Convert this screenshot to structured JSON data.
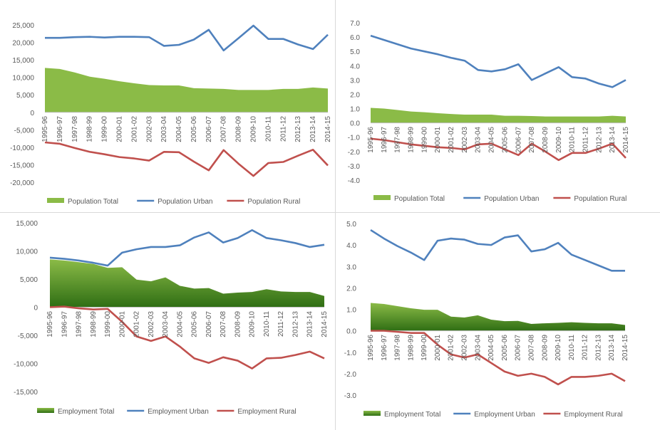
{
  "colors": {
    "total": "#8bbb47",
    "total_dark": "#2f6e14",
    "urban": "#4f81bd",
    "rural": "#c0504d",
    "axis": "#595959",
    "zero": "#bfbfbf"
  },
  "categories": [
    "1995-96",
    "1996-97",
    "1997-98",
    "1998-99",
    "1999-00",
    "2000-01",
    "2001-02",
    "2002-03",
    "2003-04",
    "2004-05",
    "2005-06",
    "2006-07",
    "2007-08",
    "2008-09",
    "2009-10",
    "2010-11",
    "2011-12",
    "2012-13",
    "2013-14",
    "2014-15"
  ],
  "chart_data": [
    {
      "type": "line",
      "ylim": [
        -20000,
        25000
      ],
      "yticks": [
        "25,000",
        "20,000",
        "15,000",
        "10,000",
        "5,000",
        "0",
        "-5,000",
        "-10,000",
        "-15,000",
        "-20,000"
      ],
      "tick_labels": [
        "1995-96",
        "1996-97",
        "1997-98",
        "1998-99",
        "1999-00",
        "2000-01",
        "2001-02",
        "2002-03",
        "2003-04",
        "2004-05",
        "2005-06",
        "2006-07",
        "2007-08",
        "2008-09",
        "2009-10",
        "2010-11",
        "2011-12",
        "2012-13",
        "2013-14",
        "2014-15"
      ],
      "series": [
        {
          "name": "Population Total",
          "kind": "area",
          "values": [
            12700,
            12400,
            11400,
            10200,
            9600,
            8900,
            8300,
            7800,
            7700,
            7700,
            6900,
            6800,
            6700,
            6400,
            6400,
            6400,
            6700,
            6700,
            7100,
            6800
          ]
        },
        {
          "name": "Population Urban",
          "kind": "line",
          "values": [
            21300,
            21300,
            21500,
            21600,
            21400,
            21600,
            21600,
            21500,
            19000,
            19300,
            20800,
            23600,
            17700,
            21200,
            24800,
            21000,
            21000,
            19400,
            18100,
            22200
          ]
        },
        {
          "name": "Population Rural",
          "kind": "line",
          "values": [
            -8600,
            -9000,
            -10200,
            -11300,
            -12000,
            -12800,
            -13200,
            -13800,
            -11300,
            -11400,
            -14100,
            -16600,
            -10800,
            -14700,
            -18200,
            -14500,
            -14200,
            -12400,
            -10700,
            -15200
          ]
        }
      ]
    },
    {
      "type": "line",
      "ylim": [
        -4,
        7
      ],
      "yticks": [
        "7.0",
        "6.0",
        "5.0",
        "4.0",
        "3.0",
        "2.0",
        "1.0",
        "0.0",
        "-1.0",
        "-2.0",
        "-3.0",
        "-4.0"
      ],
      "tick_labels": [
        "1995-96",
        "1996-97",
        "1997-98",
        "1998-99",
        "1999-00",
        "2000-01",
        "2001-02",
        "2002-03",
        "2003-04",
        "2004-05",
        "2005-06",
        "2006-07",
        "2007-08",
        "2008-09",
        "2009-10",
        "2010-11",
        "2011-12",
        "2012-13",
        "2013-14",
        "2014-15"
      ],
      "series": [
        {
          "name": "Population Total",
          "kind": "area",
          "values": [
            1.05,
            1.0,
            0.9,
            0.8,
            0.75,
            0.68,
            0.62,
            0.58,
            0.58,
            0.58,
            0.5,
            0.5,
            0.48,
            0.45,
            0.45,
            0.45,
            0.45,
            0.45,
            0.5,
            0.45
          ]
        },
        {
          "name": "Population Urban",
          "kind": "line",
          "values": [
            6.1,
            5.8,
            5.5,
            5.2,
            5.0,
            4.8,
            4.55,
            4.35,
            3.7,
            3.6,
            3.75,
            4.1,
            3.0,
            3.45,
            3.9,
            3.2,
            3.1,
            2.75,
            2.5,
            3.0
          ]
        },
        {
          "name": "Population Rural",
          "kind": "line",
          "values": [
            -1.1,
            -1.2,
            -1.35,
            -1.5,
            -1.6,
            -1.7,
            -1.75,
            -1.85,
            -1.5,
            -1.45,
            -1.85,
            -2.25,
            -1.45,
            -2.0,
            -2.6,
            -2.1,
            -2.1,
            -1.8,
            -1.45,
            -2.45
          ]
        }
      ]
    },
    {
      "type": "line",
      "ylim": [
        -15000,
        15000
      ],
      "yticks": [
        "15,000",
        "10,000",
        "5,000",
        "0",
        "-5,000",
        "-10,000",
        "-15,000"
      ],
      "tick_labels": [
        "1995-96",
        "1996-97",
        "1997-98",
        "1998-99",
        "1999-00",
        "2000-01",
        "2001-02",
        "2002-03",
        "2003-04",
        "2004-05",
        "2005-06",
        "2006-07",
        "2007-08",
        "2008-09",
        "2009-10",
        "2010-11",
        "2011-12",
        "2012-13",
        "2013-14",
        "2014-15"
      ],
      "series": [
        {
          "name": "Employment Total",
          "kind": "area",
          "values": [
            8500,
            8300,
            8000,
            7700,
            7000,
            7100,
            4900,
            4600,
            5300,
            3800,
            3300,
            3400,
            2400,
            2600,
            2700,
            3200,
            2800,
            2700,
            2700,
            2000
          ]
        },
        {
          "name": "Employment Urban",
          "kind": "line",
          "values": [
            8800,
            8600,
            8300,
            7900,
            7400,
            9700,
            10300,
            10700,
            10700,
            11000,
            12400,
            13300,
            11500,
            12300,
            13700,
            12300,
            11900,
            11400,
            10700,
            11100
          ]
        },
        {
          "name": "Employment Rural",
          "kind": "line",
          "values": [
            0,
            100,
            -200,
            -400,
            -300,
            -2600,
            -5200,
            -6000,
            -5200,
            -7000,
            -9100,
            -9900,
            -8900,
            -9500,
            -10900,
            -9100,
            -9000,
            -8500,
            -7900,
            -9100
          ]
        }
      ]
    },
    {
      "type": "line",
      "ylim": [
        -3,
        5
      ],
      "yticks": [
        "5.0",
        "4.0",
        "3.0",
        "2.0",
        "1.0",
        "0.0",
        "-1.0",
        "-2.0",
        "-3.0"
      ],
      "tick_labels": [
        "1995-96",
        "1996-97",
        "1997-98",
        "1998-99",
        "1999-00",
        "2000-01",
        "2001-02",
        "2002-03",
        "2003-04",
        "2004-05",
        "2005-06",
        "2006-07",
        "2007-08",
        "2008-09",
        "2009-10",
        "2010-11",
        "2011-12",
        "2012-13",
        "2013-14",
        "2014-15"
      ],
      "series": [
        {
          "name": "Employment Total",
          "kind": "area",
          "values": [
            1.3,
            1.25,
            1.15,
            1.05,
            0.98,
            0.98,
            0.66,
            0.62,
            0.72,
            0.52,
            0.45,
            0.46,
            0.32,
            0.35,
            0.37,
            0.4,
            0.37,
            0.35,
            0.35,
            0.27
          ]
        },
        {
          "name": "Employment Urban",
          "kind": "line",
          "values": [
            4.7,
            4.3,
            3.95,
            3.65,
            3.3,
            4.2,
            4.3,
            4.25,
            4.05,
            4.0,
            4.35,
            4.45,
            3.7,
            3.8,
            4.1,
            3.55,
            3.3,
            3.05,
            2.8,
            2.8
          ]
        },
        {
          "name": "Employment Rural",
          "kind": "line",
          "values": [
            0.0,
            0.0,
            -0.05,
            -0.1,
            -0.1,
            -0.65,
            -1.1,
            -1.25,
            -1.1,
            -1.5,
            -1.9,
            -2.1,
            -2.0,
            -2.15,
            -2.5,
            -2.15,
            -2.15,
            -2.1,
            -2.0,
            -2.35
          ]
        }
      ]
    }
  ]
}
